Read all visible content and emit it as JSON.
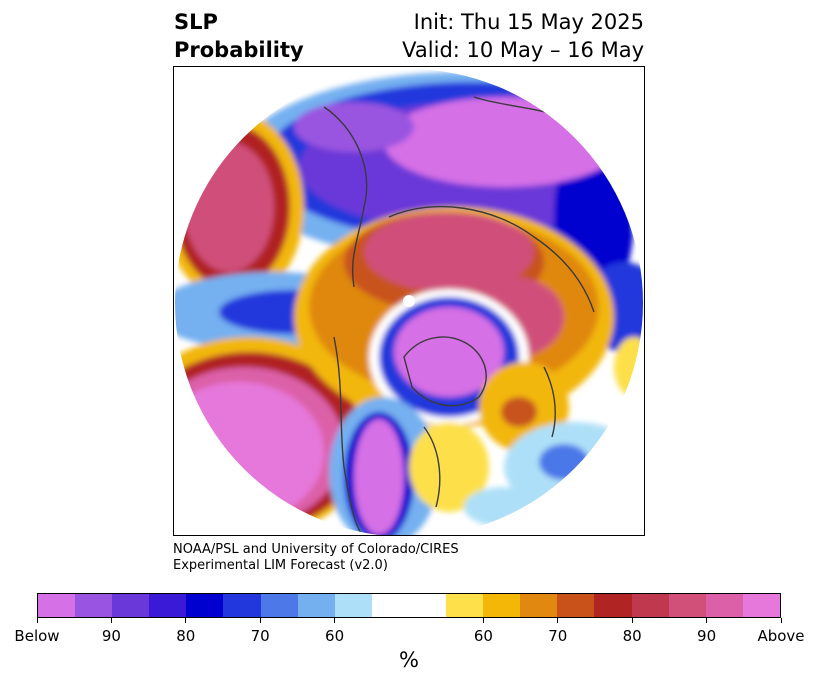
{
  "title": {
    "left_line1": "SLP",
    "left_line2": "Probability",
    "right_line1": "Init: Thu 15 May 2025",
    "right_line2": "Valid: 10 May – 16 May"
  },
  "credit": {
    "line1": "NOAA/PSL and University of Colorado/CIRES",
    "line2": "Experimental LIM Forecast (v2.0)"
  },
  "colorbar": {
    "colors": [
      "#d670e6",
      "#9a55e0",
      "#6a38d8",
      "#3a1ad6",
      "#0000cf",
      "#2338dc",
      "#4c78e8",
      "#74b0f0",
      "#ade0f8",
      "#ffffff",
      "#ffffff",
      "#fde04a",
      "#f2b707",
      "#e08810",
      "#c8521a",
      "#b02424",
      "#c0384e",
      "#d0507a",
      "#dc60a8",
      "#e678dc"
    ],
    "tick_labels": [
      "Below",
      "90",
      "80",
      "70",
      "60",
      "60",
      "70",
      "80",
      "90",
      "Above"
    ],
    "unit": "%"
  },
  "palette": {
    "below_strong": "#d670e6",
    "below_mid": "#2338dc",
    "below_weak": "#ade0f8",
    "above_weak": "#fde04a",
    "above_mid": "#e08810",
    "above_strong": "#b02424",
    "above_max": "#e678dc",
    "coast": "#3a3a3a"
  }
}
